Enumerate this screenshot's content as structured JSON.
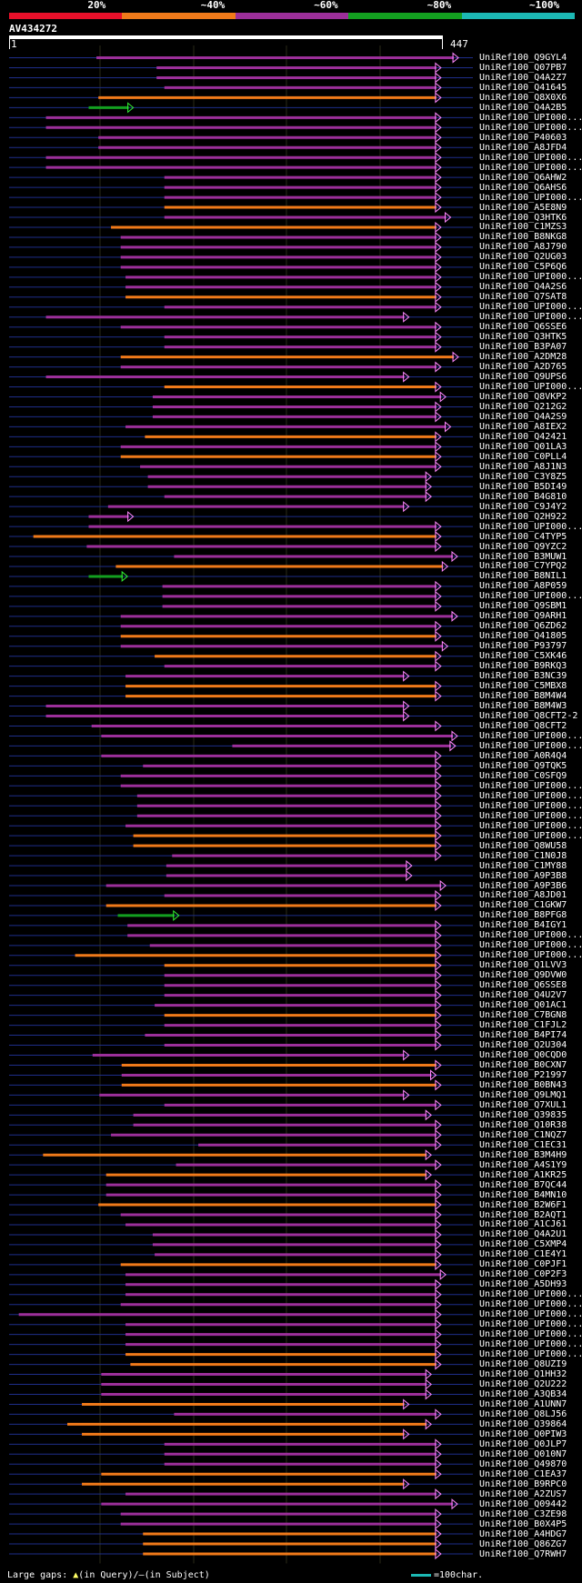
{
  "legend": {
    "segments": [
      {
        "label": "20%",
        "color": "#e8102a"
      },
      {
        "label": "~40%",
        "color": "#f07a1a"
      },
      {
        "label": "~60%",
        "color": "#9c2f9a"
      },
      {
        "label": "~80%",
        "color": "#13a020"
      },
      {
        "label": "~100%",
        "color": "#1cb8b4"
      }
    ]
  },
  "query": {
    "title": "AV434272",
    "start": "1",
    "end": "447"
  },
  "colors": {
    "background": "#000000",
    "gridline": "#2a2a18",
    "connector": "#1e2e8a",
    "head": "#ff88ff",
    "gap_marker": "#ffff66"
  },
  "hits": [
    {
      "label": "UniRef100_Q9GYL4",
      "color": "magenta",
      "start": 90,
      "end": 463
    },
    {
      "label": "UniRef100_Q07PB7",
      "color": "magenta",
      "start": 152,
      "end": 445
    },
    {
      "label": "UniRef100_Q4A2Z7",
      "color": "magenta",
      "start": 152,
      "end": 445
    },
    {
      "label": "UniRef100_Q41645",
      "color": "magenta",
      "start": 160,
      "end": 445
    },
    {
      "label": "UniRef100_Q8X0X6",
      "color": "orange",
      "start": 92,
      "end": 445
    },
    {
      "label": "UniRef100_Q4A2B5",
      "color": "green",
      "start": 82,
      "end": 128
    },
    {
      "label": "UniRef100_UPI000...",
      "color": "magenta",
      "start": 38,
      "end": 445
    },
    {
      "label": "UniRef100_UPI000...",
      "color": "magenta",
      "start": 38,
      "end": 445
    },
    {
      "label": "UniRef100_P40603",
      "color": "magenta",
      "start": 92,
      "end": 445
    },
    {
      "label": "UniRef100_A8JFD4",
      "color": "magenta",
      "start": 92,
      "end": 445
    },
    {
      "label": "UniRef100_UPI000...",
      "color": "magenta",
      "start": 38,
      "end": 445
    },
    {
      "label": "UniRef100_UPI000...",
      "color": "magenta",
      "start": 38,
      "end": 445
    },
    {
      "label": "UniRef100_Q6AHW2",
      "color": "magenta",
      "start": 160,
      "end": 445
    },
    {
      "label": "UniRef100_Q6AHS6",
      "color": "magenta",
      "start": 160,
      "end": 445
    },
    {
      "label": "UniRef100_UPI000...",
      "color": "magenta",
      "start": 160,
      "end": 445
    },
    {
      "label": "UniRef100_A5E8N9",
      "color": "orange",
      "start": 160,
      "end": 445
    },
    {
      "label": "UniRef100_Q3HTK6",
      "color": "magenta",
      "start": 160,
      "end": 455
    },
    {
      "label": "UniRef100_C1MZS3",
      "color": "orange",
      "start": 105,
      "end": 445
    },
    {
      "label": "UniRef100_B8NKG8",
      "color": "magenta",
      "start": 115,
      "end": 445
    },
    {
      "label": "UniRef100_A8J790",
      "color": "magenta",
      "start": 115,
      "end": 445
    },
    {
      "label": "UniRef100_Q2UG03",
      "color": "magenta",
      "start": 115,
      "end": 445
    },
    {
      "label": "UniRef100_C5P6Q6",
      "color": "magenta",
      "start": 115,
      "end": 445
    },
    {
      "label": "UniRef100_UPI000...",
      "color": "magenta",
      "start": 120,
      "end": 445
    },
    {
      "label": "UniRef100_Q4A2S6",
      "color": "magenta",
      "start": 120,
      "end": 445
    },
    {
      "label": "UniRef100_Q7SAT8",
      "color": "orange",
      "start": 120,
      "end": 445
    },
    {
      "label": "UniRef100_UPI000...",
      "color": "magenta",
      "start": 160,
      "end": 445
    },
    {
      "label": "UniRef100_UPI000...",
      "color": "magenta",
      "start": 38,
      "end": 412
    },
    {
      "label": "UniRef100_Q6SSE6",
      "color": "magenta",
      "start": 115,
      "end": 445
    },
    {
      "label": "UniRef100_Q3HTK5",
      "color": "magenta",
      "start": 160,
      "end": 445
    },
    {
      "label": "UniRef100_B3PA07",
      "color": "magenta",
      "start": 160,
      "end": 445
    },
    {
      "label": "UniRef100_A2DM28",
      "color": "orange",
      "start": 115,
      "end": 463
    },
    {
      "label": "UniRef100_A2D765",
      "color": "magenta",
      "start": 115,
      "end": 445
    },
    {
      "label": "UniRef100_Q9UPS6",
      "color": "magenta",
      "start": 38,
      "end": 412
    },
    {
      "label": "UniRef100_UPI000...",
      "color": "orange",
      "start": 160,
      "end": 445
    },
    {
      "label": "UniRef100_Q8VKP2",
      "color": "magenta",
      "start": 148,
      "end": 450
    },
    {
      "label": "UniRef100_Q212G2",
      "color": "magenta",
      "start": 148,
      "end": 445
    },
    {
      "label": "UniRef100_Q4A2S9",
      "color": "magenta",
      "start": 148,
      "end": 445
    },
    {
      "label": "UniRef100_A8IEX2",
      "color": "magenta",
      "start": 120,
      "end": 455
    },
    {
      "label": "UniRef100_Q42421",
      "color": "orange",
      "start": 140,
      "end": 445
    },
    {
      "label": "UniRef100_Q01LA3",
      "color": "magenta",
      "start": 115,
      "end": 445
    },
    {
      "label": "UniRef100_C0PLL4",
      "color": "orange",
      "start": 115,
      "end": 445
    },
    {
      "label": "UniRef100_A8J1N3",
      "color": "magenta",
      "start": 135,
      "end": 445
    },
    {
      "label": "UniRef100_C3Y8Z5",
      "color": "magenta",
      "start": 143,
      "end": 435
    },
    {
      "label": "UniRef100_B5DI49",
      "color": "magenta",
      "start": 143,
      "end": 435
    },
    {
      "label": "UniRef100_B4G810",
      "color": "magenta",
      "start": 160,
      "end": 435
    },
    {
      "label": "UniRef100_C9J4Y2",
      "color": "magenta",
      "start": 102,
      "end": 412
    },
    {
      "label": "UniRef100_Q2H922",
      "color": "magenta",
      "start": 82,
      "end": 128
    },
    {
      "label": "UniRef100_UPI000...",
      "color": "magenta",
      "start": 82,
      "end": 445
    },
    {
      "label": "UniRef100_C4TYP5",
      "color": "orange",
      "start": 25,
      "end": 445
    },
    {
      "label": "UniRef100_Q9YZC2",
      "color": "magenta",
      "start": 80,
      "end": 445
    },
    {
      "label": "UniRef100_B3MUW1",
      "color": "magenta",
      "start": 170,
      "end": 462
    },
    {
      "label": "UniRef100_C7YPQ2",
      "color": "orange",
      "start": 110,
      "end": 452
    },
    {
      "label": "UniRef100_B8NIL1",
      "color": "green",
      "start": 82,
      "end": 122
    },
    {
      "label": "UniRef100_A8P059",
      "color": "magenta",
      "start": 158,
      "end": 445
    },
    {
      "label": "UniRef100_UPI000...",
      "color": "magenta",
      "start": 158,
      "end": 445
    },
    {
      "label": "UniRef100_Q9SBM1",
      "color": "magenta",
      "start": 158,
      "end": 445
    },
    {
      "label": "UniRef100_Q9ARH1",
      "color": "magenta",
      "start": 115,
      "end": 462
    },
    {
      "label": "UniRef100_Q6ZD62",
      "color": "magenta",
      "start": 115,
      "end": 445
    },
    {
      "label": "UniRef100_Q41805",
      "color": "orange",
      "start": 115,
      "end": 445
    },
    {
      "label": "UniRef100_P93797",
      "color": "magenta",
      "start": 115,
      "end": 452
    },
    {
      "label": "UniRef100_C5XK46",
      "color": "orange",
      "start": 150,
      "end": 445
    },
    {
      "label": "UniRef100_B9RKQ3",
      "color": "magenta",
      "start": 160,
      "end": 445
    },
    {
      "label": "UniRef100_B3NC39",
      "color": "magenta",
      "start": 120,
      "end": 412
    },
    {
      "label": "UniRef100_C5MBX8",
      "color": "orange",
      "start": 120,
      "end": 445
    },
    {
      "label": "UniRef100_B8M4W4",
      "color": "orange",
      "start": 120,
      "end": 445
    },
    {
      "label": "UniRef100_B8M4W3",
      "color": "magenta",
      "start": 38,
      "end": 412
    },
    {
      "label": "UniRef100_Q8CFT2-2",
      "color": "magenta",
      "start": 38,
      "end": 412
    },
    {
      "label": "UniRef100_Q8CFT2",
      "color": "magenta",
      "start": 85,
      "end": 445
    },
    {
      "label": "UniRef100_UPI000...",
      "color": "magenta",
      "start": 95,
      "end": 462
    },
    {
      "label": "UniRef100_UPI000...",
      "color": "magenta",
      "start": 230,
      "end": 460
    },
    {
      "label": "UniRef100_A0R4Q4",
      "color": "magenta",
      "start": 95,
      "end": 445
    },
    {
      "label": "UniRef100_Q9TQK5",
      "color": "magenta",
      "start": 138,
      "end": 445
    },
    {
      "label": "UniRef100_C0SFQ9",
      "color": "magenta",
      "start": 115,
      "end": 445
    },
    {
      "label": "UniRef100_UPI000...",
      "color": "magenta",
      "start": 115,
      "end": 445
    },
    {
      "label": "UniRef100_UPI000...",
      "color": "magenta",
      "start": 132,
      "end": 445
    },
    {
      "label": "UniRef100_UPI000...",
      "color": "magenta",
      "start": 132,
      "end": 445
    },
    {
      "label": "UniRef100_UPI000...",
      "color": "magenta",
      "start": 132,
      "end": 445
    },
    {
      "label": "UniRef100_UPI000...",
      "color": "magenta",
      "start": 120,
      "end": 445
    },
    {
      "label": "UniRef100_UPI000...",
      "color": "orange",
      "start": 128,
      "end": 445
    },
    {
      "label": "UniRef100_Q8WU58",
      "color": "orange",
      "start": 128,
      "end": 445
    },
    {
      "label": "UniRef100_C1N0J8",
      "color": "magenta",
      "start": 168,
      "end": 445
    },
    {
      "label": "UniRef100_C1MY88",
      "color": "magenta",
      "start": 162,
      "end": 415
    },
    {
      "label": "UniRef100_A9P3B8",
      "color": "magenta",
      "start": 162,
      "end": 415
    },
    {
      "label": "UniRef100_A9P3B6",
      "color": "magenta",
      "start": 100,
      "end": 450
    },
    {
      "label": "UniRef100_A8JD01",
      "color": "magenta",
      "start": 160,
      "end": 445
    },
    {
      "label": "UniRef100_C1GKW7",
      "color": "orange",
      "start": 100,
      "end": 445
    },
    {
      "label": "UniRef100_B8PFG8",
      "color": "green",
      "start": 112,
      "end": 175
    },
    {
      "label": "UniRef100_B4IGY1",
      "color": "magenta",
      "start": 122,
      "end": 445
    },
    {
      "label": "UniRef100_UPI000...",
      "color": "magenta",
      "start": 122,
      "end": 445
    },
    {
      "label": "UniRef100_UPI000...",
      "color": "magenta",
      "start": 145,
      "end": 445
    },
    {
      "label": "UniRef100_UPI000...",
      "color": "orange",
      "start": 68,
      "end": 445
    },
    {
      "label": "UniRef100_Q1LVV3",
      "color": "orange",
      "start": 160,
      "end": 445
    },
    {
      "label": "UniRef100_Q9DVW0",
      "color": "magenta",
      "start": 160,
      "end": 445
    },
    {
      "label": "UniRef100_Q6SSE8",
      "color": "magenta",
      "start": 160,
      "end": 445
    },
    {
      "label": "UniRef100_Q4U2V7",
      "color": "magenta",
      "start": 160,
      "end": 445
    },
    {
      "label": "UniRef100_Q01AC1",
      "color": "magenta",
      "start": 150,
      "end": 445
    },
    {
      "label": "UniRef100_C7BGN8",
      "color": "orange",
      "start": 160,
      "end": 445
    },
    {
      "label": "UniRef100_C1FJL2",
      "color": "magenta",
      "start": 160,
      "end": 445
    },
    {
      "label": "UniRef100_B4PI74",
      "color": "magenta",
      "start": 140,
      "end": 445
    },
    {
      "label": "UniRef100_Q2U304",
      "color": "magenta",
      "start": 160,
      "end": 445
    },
    {
      "label": "UniRef100_Q0CQD0",
      "color": "magenta",
      "start": 86,
      "end": 412
    },
    {
      "label": "UniRef100_B0CXN7",
      "color": "orange",
      "start": 116,
      "end": 445
    },
    {
      "label": "UniRef100_P21997",
      "color": "magenta",
      "start": 116,
      "end": 440
    },
    {
      "label": "UniRef100_B0BN43",
      "color": "orange",
      "start": 116,
      "end": 445
    },
    {
      "label": "UniRef100_Q9LMQ1",
      "color": "magenta",
      "start": 93,
      "end": 412
    },
    {
      "label": "UniRef100_Q7XUL1",
      "color": "magenta",
      "start": 160,
      "end": 445
    },
    {
      "label": "UniRef100_Q39835",
      "color": "magenta",
      "start": 128,
      "end": 435
    },
    {
      "label": "UniRef100_Q10R38",
      "color": "magenta",
      "start": 128,
      "end": 445
    },
    {
      "label": "UniRef100_C1NQZ7",
      "color": "magenta",
      "start": 105,
      "end": 445
    },
    {
      "label": "UniRef100_C1EC31",
      "color": "magenta",
      "start": 195,
      "end": 445
    },
    {
      "label": "UniRef100_B3M4H9",
      "color": "orange",
      "start": 35,
      "end": 435
    },
    {
      "label": "UniRef100_A4S1Y9",
      "color": "magenta",
      "start": 172,
      "end": 445
    },
    {
      "label": "UniRef100_A1KR25",
      "color": "orange",
      "start": 100,
      "end": 435
    },
    {
      "label": "UniRef100_B7QC44",
      "color": "magenta",
      "start": 100,
      "end": 445
    },
    {
      "label": "UniRef100_B4MN10",
      "color": "magenta",
      "start": 100,
      "end": 445
    },
    {
      "label": "UniRef100_B2W6F1",
      "color": "orange",
      "start": 92,
      "end": 445
    },
    {
      "label": "UniRef100_B2AQT1",
      "color": "magenta",
      "start": 115,
      "end": 445
    },
    {
      "label": "UniRef100_A1CJ61",
      "color": "magenta",
      "start": 120,
      "end": 445
    },
    {
      "label": "UniRef100_Q4A2U1",
      "color": "magenta",
      "start": 148,
      "end": 445
    },
    {
      "label": "UniRef100_C5XMP4",
      "color": "magenta",
      "start": 148,
      "end": 445
    },
    {
      "label": "UniRef100_C1E4Y1",
      "color": "magenta",
      "start": 150,
      "end": 445
    },
    {
      "label": "UniRef100_C0PJF1",
      "color": "orange",
      "start": 115,
      "end": 445
    },
    {
      "label": "UniRef100_C0P2F3",
      "color": "magenta",
      "start": 120,
      "end": 450
    },
    {
      "label": "UniRef100_A5DH93",
      "color": "magenta",
      "start": 120,
      "end": 445
    },
    {
      "label": "UniRef100_UPI000...",
      "color": "magenta",
      "start": 120,
      "end": 445
    },
    {
      "label": "UniRef100_UPI000...",
      "color": "magenta",
      "start": 115,
      "end": 445
    },
    {
      "label": "UniRef100_UPI000...",
      "color": "magenta",
      "start": 10,
      "end": 445
    },
    {
      "label": "UniRef100_UPI000...",
      "color": "magenta",
      "start": 120,
      "end": 445
    },
    {
      "label": "UniRef100_UPI000...",
      "color": "magenta",
      "start": 120,
      "end": 445
    },
    {
      "label": "UniRef100_UPI000...",
      "color": "magenta",
      "start": 120,
      "end": 445
    },
    {
      "label": "UniRef100_UPI000...",
      "color": "orange",
      "start": 120,
      "end": 445
    },
    {
      "label": "UniRef100_Q8UZI9",
      "color": "orange",
      "start": 125,
      "end": 445
    },
    {
      "label": "UniRef100_Q1HH32",
      "color": "magenta",
      "start": 95,
      "end": 435
    },
    {
      "label": "UniRef100_Q2U222",
      "color": "magenta",
      "start": 95,
      "end": 435
    },
    {
      "label": "UniRef100_A3QB34",
      "color": "magenta",
      "start": 95,
      "end": 435
    },
    {
      "label": "UniRef100_A1UNN7",
      "color": "orange",
      "start": 75,
      "end": 412
    },
    {
      "label": "UniRef100_Q8LJ56",
      "color": "magenta",
      "start": 170,
      "end": 445
    },
    {
      "label": "UniRef100_Q39864",
      "color": "orange",
      "start": 60,
      "end": 435
    },
    {
      "label": "UniRef100_Q0PIW3",
      "color": "orange",
      "start": 75,
      "end": 412
    },
    {
      "label": "UniRef100_Q0JLP7",
      "color": "magenta",
      "start": 160,
      "end": 445
    },
    {
      "label": "UniRef100_Q010N7",
      "color": "magenta",
      "start": 160,
      "end": 445
    },
    {
      "label": "UniRef100_Q49870",
      "color": "magenta",
      "start": 160,
      "end": 445
    },
    {
      "label": "UniRef100_C1EA37",
      "color": "orange",
      "start": 95,
      "end": 445
    },
    {
      "label": "UniRef100_B9RPC0",
      "color": "orange",
      "start": 75,
      "end": 412
    },
    {
      "label": "UniRef100_A2ZUS7",
      "color": "magenta",
      "start": 120,
      "end": 445
    },
    {
      "label": "UniRef100_Q09442",
      "color": "magenta",
      "start": 95,
      "end": 462
    },
    {
      "label": "UniRef100_C3ZE98",
      "color": "magenta",
      "start": 115,
      "end": 445
    },
    {
      "label": "UniRef100_B0X4P5",
      "color": "magenta",
      "start": 115,
      "end": 445
    },
    {
      "label": "UniRef100_A4HDG7",
      "color": "orange",
      "start": 138,
      "end": 445
    },
    {
      "label": "UniRef100_Q86ZG7",
      "color": "orange",
      "start": 138,
      "end": 445
    },
    {
      "label": "UniRef100_Q7RWH7",
      "color": "orange",
      "start": 138,
      "end": 445
    }
  ],
  "footer": {
    "prefix": "Large gaps:",
    "query_marker": "▲",
    "query_text": "(in Query)/",
    "subject_marker": "–",
    "subject_text": "(in Subject)",
    "scale_text": "=100char.",
    "scale_color": "#1cb8b4"
  }
}
